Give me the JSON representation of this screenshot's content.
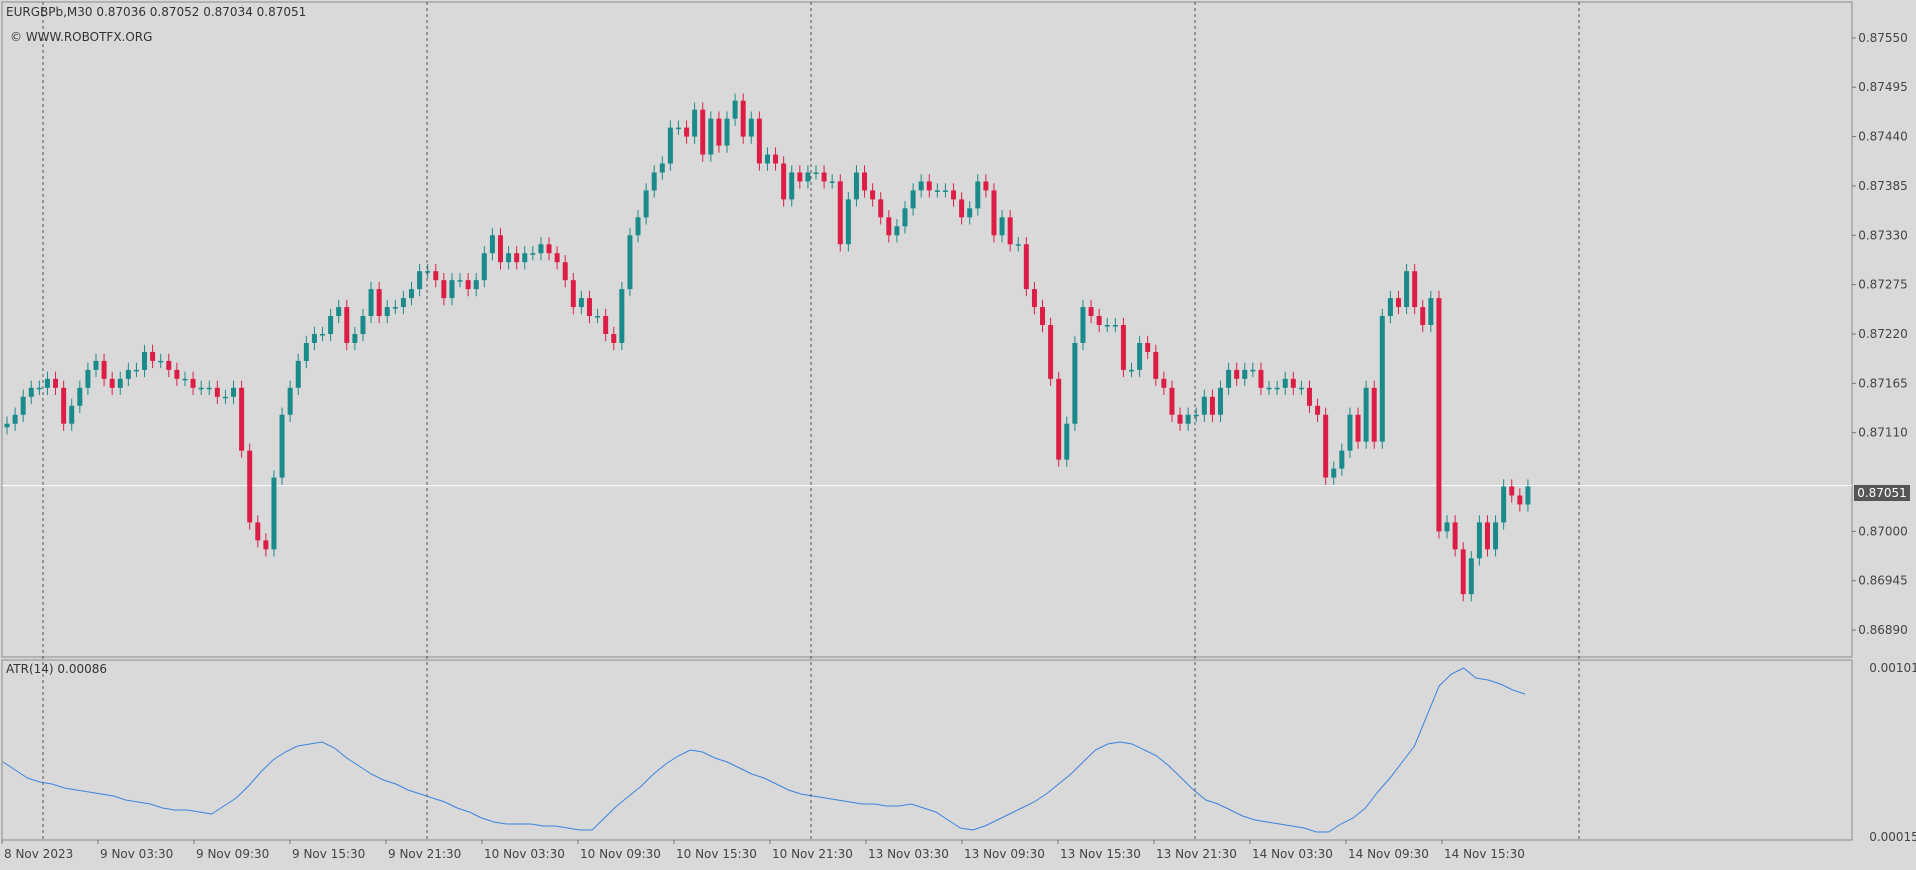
{
  "header": {
    "symbol_line": "EURGBPb,M30  0.87036 0.87052 0.87034 0.87051",
    "watermark": "© WWW.ROBOTFX.ORG"
  },
  "indicator": {
    "label": "ATR(14) 0.00086",
    "scale_top": "0.00101",
    "scale_bottom": "0.00015"
  },
  "current_price_label": "0.87051",
  "colors": {
    "background": "#d9d9d9",
    "bull": "#1a8a8a",
    "bear": "#dc1e46",
    "atr_line": "#3b82e0",
    "grid": "#555555",
    "price_line": "#ffffff"
  },
  "chart_data": [
    {
      "type": "candlestick",
      "symbol": "EURGBPb",
      "timeframe": "M30",
      "ylim": [
        0.8686,
        0.8759
      ],
      "yticks": [
        "0.87550",
        "0.87495",
        "0.87440",
        "0.87385",
        "0.87330",
        "0.87275",
        "0.87220",
        "0.87165",
        "0.87110",
        "0.87000",
        "0.86945",
        "0.86890"
      ],
      "current_price": 0.87051,
      "x_tick_labels": [
        "8 Nov 2023",
        "9 Nov 03:30",
        "9 Nov 09:30",
        "9 Nov 15:30",
        "9 Nov 21:30",
        "10 Nov 03:30",
        "10 Nov 09:30",
        "10 Nov 15:30",
        "10 Nov 21:30",
        "13 Nov 03:30",
        "13 Nov 09:30",
        "13 Nov 15:30",
        "13 Nov 21:30",
        "14 Nov 03:30",
        "14 Nov 09:30",
        "14 Nov 15:30"
      ],
      "close": [
        0.8712,
        0.8713,
        0.8715,
        0.8716,
        0.8716,
        0.8717,
        0.8716,
        0.8712,
        0.8714,
        0.8716,
        0.8718,
        0.8719,
        0.8717,
        0.8716,
        0.8717,
        0.8718,
        0.8718,
        0.872,
        0.8719,
        0.8719,
        0.8718,
        0.8717,
        0.8717,
        0.8716,
        0.8716,
        0.8716,
        0.8715,
        0.8715,
        0.8716,
        0.8709,
        0.8701,
        0.8699,
        0.8698,
        0.8706,
        0.8713,
        0.8716,
        0.8719,
        0.8721,
        0.8722,
        0.8722,
        0.8724,
        0.8725,
        0.8721,
        0.8722,
        0.8724,
        0.8727,
        0.8724,
        0.8725,
        0.8725,
        0.8726,
        0.8727,
        0.8729,
        0.8729,
        0.8728,
        0.8726,
        0.8728,
        0.8728,
        0.8727,
        0.8728,
        0.8731,
        0.8733,
        0.873,
        0.8731,
        0.873,
        0.8731,
        0.8731,
        0.8732,
        0.8731,
        0.873,
        0.8728,
        0.8725,
        0.8726,
        0.8724,
        0.8724,
        0.8722,
        0.8721,
        0.8727,
        0.8733,
        0.8735,
        0.8738,
        0.874,
        0.8741,
        0.8745,
        0.8745,
        0.8744,
        0.8747,
        0.8742,
        0.8746,
        0.8743,
        0.8746,
        0.8748,
        0.8744,
        0.8746,
        0.8741,
        0.8742,
        0.8741,
        0.8737,
        0.874,
        0.8739,
        0.874,
        0.874,
        0.8739,
        0.8739,
        0.8732,
        0.8737,
        0.874,
        0.8738,
        0.8737,
        0.8735,
        0.8733,
        0.8734,
        0.8736,
        0.8738,
        0.8739,
        0.8738,
        0.8738,
        0.8738,
        0.8737,
        0.8735,
        0.8736,
        0.8739,
        0.8738,
        0.8733,
        0.8735,
        0.8732,
        0.8732,
        0.8727,
        0.8725,
        0.8723,
        0.8717,
        0.8708,
        0.8712,
        0.8721,
        0.8725,
        0.8724,
        0.8723,
        0.8723,
        0.8723,
        0.8718,
        0.8718,
        0.8721,
        0.872,
        0.8717,
        0.8716,
        0.8713,
        0.8712,
        0.8713,
        0.8713,
        0.8715,
        0.8713,
        0.8716,
        0.8718,
        0.8717,
        0.8718,
        0.8718,
        0.8716,
        0.8716,
        0.8716,
        0.8717,
        0.8716,
        0.8716,
        0.8714,
        0.8713,
        0.8706,
        0.8707,
        0.8709,
        0.8713,
        0.871,
        0.8716,
        0.871,
        0.8724,
        0.8726,
        0.8725,
        0.8729,
        0.8725,
        0.8723,
        0.8726,
        0.87,
        0.8701,
        0.8698,
        0.8693,
        0.8697,
        0.8701,
        0.8698,
        0.8701,
        0.8705,
        0.8704,
        0.8703,
        0.8705
      ]
    },
    {
      "type": "line",
      "name": "ATR(14)",
      "ylim": [
        0.00015,
        0.00101
      ],
      "last_value": 0.00086,
      "values": [
        0.00052,
        0.00048,
        0.00044,
        0.00042,
        0.00041,
        0.00039,
        0.00038,
        0.00037,
        0.00036,
        0.00035,
        0.00033,
        0.00032,
        0.00031,
        0.00029,
        0.00028,
        0.00028,
        0.00027,
        0.00026,
        0.0003,
        0.00034,
        0.0004,
        0.00047,
        0.00053,
        0.00057,
        0.0006,
        0.00061,
        0.00062,
        0.00059,
        0.00054,
        0.0005,
        0.00046,
        0.00043,
        0.00041,
        0.00038,
        0.00036,
        0.00034,
        0.00032,
        0.00029,
        0.00027,
        0.00024,
        0.00022,
        0.00021,
        0.00021,
        0.00021,
        0.0002,
        0.0002,
        0.00019,
        0.00018,
        0.00018,
        0.00024,
        0.0003,
        0.00035,
        0.0004,
        0.00046,
        0.00051,
        0.00055,
        0.00058,
        0.00057,
        0.00054,
        0.00052,
        0.00049,
        0.00046,
        0.00044,
        0.00041,
        0.00038,
        0.00036,
        0.00035,
        0.00034,
        0.00033,
        0.00032,
        0.00031,
        0.00031,
        0.0003,
        0.0003,
        0.00031,
        0.00029,
        0.00027,
        0.00023,
        0.00019,
        0.00018,
        0.0002,
        0.00023,
        0.00026,
        0.00029,
        0.00032,
        0.00036,
        0.00041,
        0.00046,
        0.00052,
        0.00058,
        0.00061,
        0.00062,
        0.00061,
        0.00058,
        0.00055,
        0.0005,
        0.00044,
        0.00038,
        0.00033,
        0.00031,
        0.00028,
        0.00025,
        0.00023,
        0.00022,
        0.00021,
        0.0002,
        0.00019,
        0.00017,
        0.00017,
        0.00021,
        0.00024,
        0.00029,
        0.00037,
        0.00044,
        0.00052,
        0.0006,
        0.00075,
        0.0009,
        0.00096,
        0.00099,
        0.00094,
        0.00093,
        0.00091,
        0.00088,
        0.00086
      ]
    }
  ]
}
